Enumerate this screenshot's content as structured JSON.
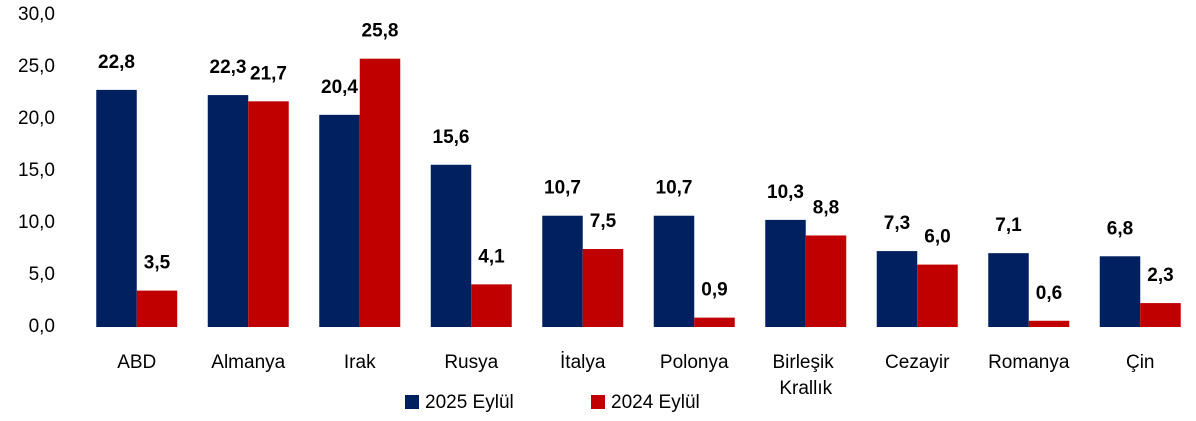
{
  "chart_data": {
    "type": "bar",
    "categories": [
      "ABD",
      "Almanya",
      "Irak",
      "Rusya",
      "İtalya",
      "Polonya",
      "Birleşik Krallık",
      "Cezayir",
      "Romanya",
      "Çin"
    ],
    "series": [
      {
        "name": "2025 Eylül",
        "color": "#002060",
        "values": [
          22.8,
          22.3,
          20.4,
          15.6,
          10.7,
          10.7,
          10.3,
          7.3,
          7.1,
          6.8
        ],
        "value_labels": [
          "22,8",
          "22,3",
          "20,4",
          "15,6",
          "10,7",
          "10,7",
          "10,3",
          "7,3",
          "7,1",
          "6,8"
        ]
      },
      {
        "name": "2024 Eylül",
        "color": "#c00000",
        "values": [
          3.5,
          21.7,
          25.8,
          4.1,
          7.5,
          0.9,
          8.8,
          6.0,
          0.6,
          2.3
        ],
        "value_labels": [
          "3,5",
          "21,7",
          "25,8",
          "4,1",
          "7,5",
          "0,9",
          "8,8",
          "6,0",
          "0,6",
          "2,3"
        ]
      }
    ],
    "ylim": [
      0,
      30
    ],
    "yticks": [
      {
        "value": 0,
        "label": "0,0"
      },
      {
        "value": 5,
        "label": "5,0"
      },
      {
        "value": 10,
        "label": "10,0"
      },
      {
        "value": 15,
        "label": "15,0"
      },
      {
        "value": 20,
        "label": "20,0"
      },
      {
        "value": 25,
        "label": "25,0"
      },
      {
        "value": 30,
        "label": "30,0"
      }
    ],
    "legend": "bottom"
  }
}
